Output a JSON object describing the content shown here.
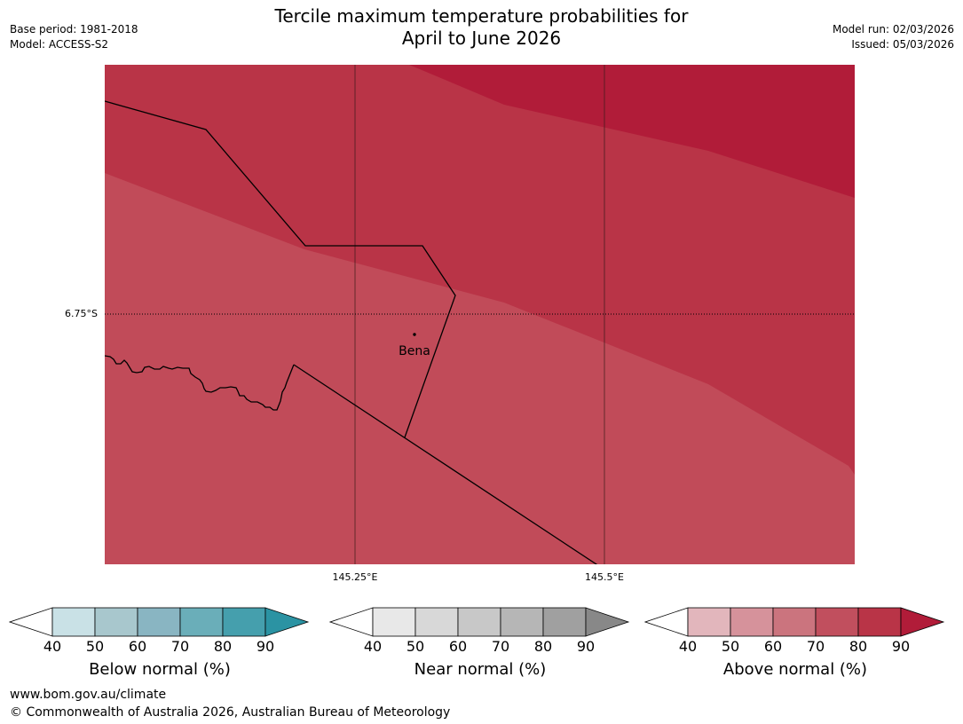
{
  "header": {
    "title_line1": "Tercile maximum temperature probabilities for",
    "title_line2": "April to June 2026",
    "base_period": "Base period: 1981-2018",
    "model": "Model: ACCESS-S2",
    "model_run": "Model run: 02/03/2026",
    "issued": "Issued: 05/03/2026"
  },
  "map": {
    "lat_label": "6.75°S",
    "lon_labels": [
      "145.25°E",
      "145.5°E"
    ],
    "place_label": "Bena",
    "zone_colors": [
      "#c14b59",
      "#b93447",
      "#b11c39"
    ]
  },
  "colorbars": [
    {
      "title": "Below normal (%)",
      "ticks": [
        "40",
        "50",
        "60",
        "70",
        "80",
        "90"
      ],
      "colors": [
        "#ffffff",
        "#c9e1e6",
        "#a8c7cd",
        "#89b5c2",
        "#6aaeb9",
        "#459fad",
        "#2b93a3"
      ]
    },
    {
      "title": "Near normal (%)",
      "ticks": [
        "40",
        "50",
        "60",
        "70",
        "80",
        "90"
      ],
      "colors": [
        "#ffffff",
        "#e8e8e8",
        "#d8d8d8",
        "#c8c8c8",
        "#b6b6b6",
        "#a0a0a0",
        "#888888"
      ]
    },
    {
      "title": "Above normal (%)",
      "ticks": [
        "40",
        "50",
        "60",
        "70",
        "80",
        "90"
      ],
      "colors": [
        "#ffffff",
        "#e2b6bc",
        "#d6929b",
        "#cb747e",
        "#c14f5e",
        "#b93447",
        "#b11c39"
      ]
    }
  ],
  "footer": {
    "url": "www.bom.gov.au/climate",
    "copyright": "© Commonwealth of Australia 2026, Australian Bureau of Meteorology"
  }
}
